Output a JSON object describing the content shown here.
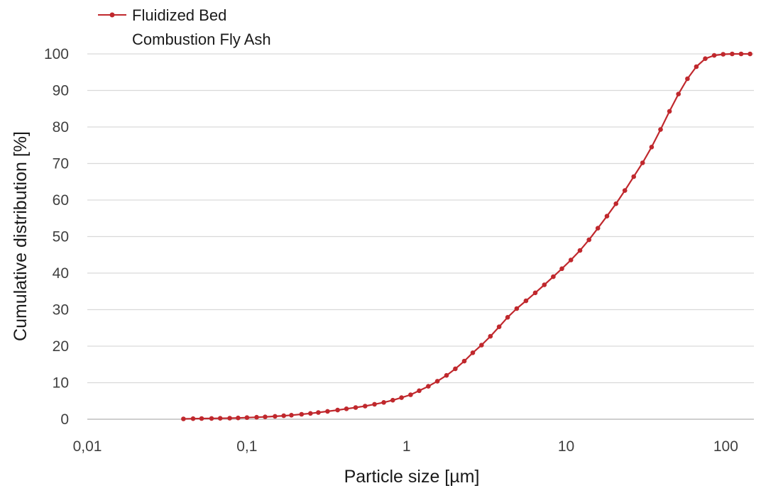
{
  "chart_data": {
    "type": "line",
    "xlabel": "Particle size [µm]",
    "ylabel": "Cumulative distribution [%]",
    "x_scale": "log",
    "xlim": [
      0.01,
      150
    ],
    "ylim": [
      0,
      100
    ],
    "x_ticks": [
      {
        "value": 0.01,
        "label": "0,01"
      },
      {
        "value": 0.1,
        "label": "0,1"
      },
      {
        "value": 1,
        "label": "1"
      },
      {
        "value": 10,
        "label": "10"
      },
      {
        "value": 100,
        "label": "100"
      }
    ],
    "y_ticks": [
      {
        "value": 0,
        "label": "0"
      },
      {
        "value": 10,
        "label": "10"
      },
      {
        "value": 20,
        "label": "20"
      },
      {
        "value": 30,
        "label": "30"
      },
      {
        "value": 40,
        "label": "40"
      },
      {
        "value": 50,
        "label": "50"
      },
      {
        "value": 60,
        "label": "60"
      },
      {
        "value": 70,
        "label": "70"
      },
      {
        "value": 80,
        "label": "80"
      },
      {
        "value": 90,
        "label": "90"
      },
      {
        "value": 100,
        "label": "100"
      }
    ],
    "grid": {
      "horizontal": true,
      "vertical": false
    },
    "legend": {
      "position": "top-left",
      "lines": [
        "Fluidized Bed",
        "Combustion Fly Ash"
      ]
    },
    "series": [
      {
        "name": "Fluidized Bed Combustion Fly Ash",
        "color": "#c0282d",
        "marker": "circle",
        "points": [
          [
            0.04,
            0.1
          ],
          [
            0.046,
            0.15
          ],
          [
            0.052,
            0.2
          ],
          [
            0.06,
            0.22
          ],
          [
            0.068,
            0.25
          ],
          [
            0.078,
            0.3
          ],
          [
            0.088,
            0.35
          ],
          [
            0.1,
            0.45
          ],
          [
            0.115,
            0.55
          ],
          [
            0.13,
            0.65
          ],
          [
            0.15,
            0.8
          ],
          [
            0.17,
            0.95
          ],
          [
            0.19,
            1.1
          ],
          [
            0.22,
            1.35
          ],
          [
            0.25,
            1.6
          ],
          [
            0.28,
            1.85
          ],
          [
            0.32,
            2.15
          ],
          [
            0.37,
            2.5
          ],
          [
            0.42,
            2.85
          ],
          [
            0.48,
            3.2
          ],
          [
            0.55,
            3.6
          ],
          [
            0.63,
            4.1
          ],
          [
            0.72,
            4.6
          ],
          [
            0.82,
            5.2
          ],
          [
            0.93,
            5.9
          ],
          [
            1.06,
            6.7
          ],
          [
            1.2,
            7.8
          ],
          [
            1.37,
            9.0
          ],
          [
            1.56,
            10.4
          ],
          [
            1.78,
            12.0
          ],
          [
            2.02,
            13.8
          ],
          [
            2.3,
            15.9
          ],
          [
            2.6,
            18.2
          ],
          [
            2.95,
            20.3
          ],
          [
            3.35,
            22.7
          ],
          [
            3.8,
            25.3
          ],
          [
            4.3,
            27.9
          ],
          [
            4.9,
            30.3
          ],
          [
            5.6,
            32.4
          ],
          [
            6.4,
            34.6
          ],
          [
            7.3,
            36.8
          ],
          [
            8.3,
            39.0
          ],
          [
            9.4,
            41.2
          ],
          [
            10.7,
            43.6
          ],
          [
            12.2,
            46.2
          ],
          [
            13.9,
            49.1
          ],
          [
            15.8,
            52.3
          ],
          [
            18,
            55.6
          ],
          [
            20.5,
            59.0
          ],
          [
            23.3,
            62.6
          ],
          [
            26.5,
            66.4
          ],
          [
            30.1,
            70.2
          ],
          [
            34.3,
            74.5
          ],
          [
            39,
            79.3
          ],
          [
            44.4,
            84.3
          ],
          [
            50.5,
            89.0
          ],
          [
            57.5,
            93.2
          ],
          [
            65.4,
            96.5
          ],
          [
            74.4,
            98.7
          ],
          [
            84.6,
            99.6
          ],
          [
            96.3,
            99.9
          ],
          [
            109.6,
            100
          ],
          [
            124.7,
            100
          ],
          [
            141.9,
            100
          ]
        ]
      }
    ]
  }
}
